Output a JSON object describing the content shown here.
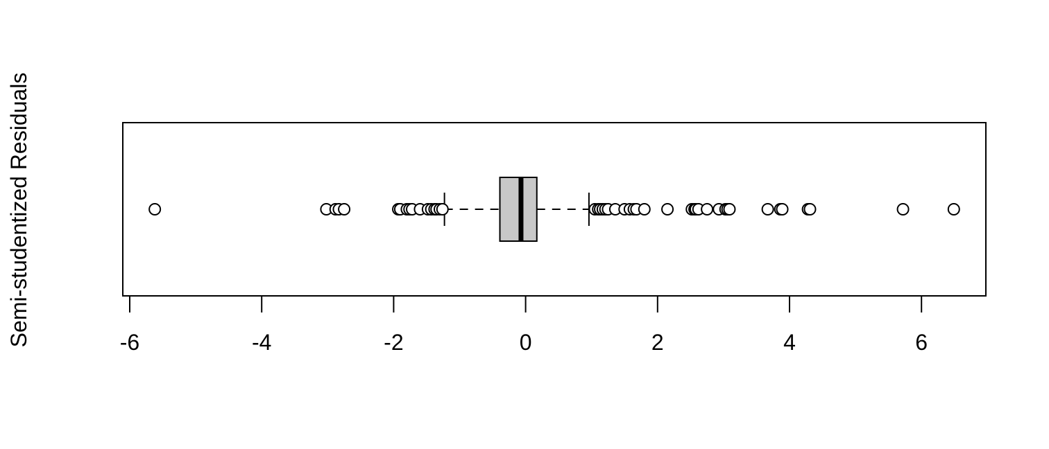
{
  "chart_data": {
    "type": "boxplot",
    "orientation": "horizontal",
    "title": "",
    "xlabel": "",
    "ylabel": "Semi-studentized Residuals",
    "xlim": [
      -6.1,
      7.0
    ],
    "x_ticks": [
      -6,
      -4,
      -2,
      0,
      2,
      4,
      6
    ],
    "x_tick_labels": [
      "-6",
      "-4",
      "-2",
      "0",
      "2",
      "4",
      "6"
    ],
    "grid": false,
    "legend": "none",
    "box": {
      "q1": -0.39,
      "median": -0.07,
      "q3": 0.17,
      "whisker_low": -1.23,
      "whisker_high": 0.96
    },
    "outliers": [
      -5.62,
      -3.02,
      -2.88,
      -2.83,
      -2.75,
      -1.93,
      -1.9,
      -1.8,
      -1.76,
      -1.72,
      -1.6,
      -1.48,
      -1.43,
      -1.38,
      -1.35,
      -1.3,
      -1.26,
      1.05,
      1.1,
      1.13,
      1.17,
      1.21,
      1.25,
      1.36,
      1.5,
      1.58,
      1.64,
      1.68,
      1.8,
      2.15,
      2.52,
      2.56,
      2.58,
      2.62,
      2.75,
      2.93,
      3.03,
      3.06,
      3.09,
      3.67,
      3.86,
      3.89,
      4.28,
      4.31,
      5.72,
      6.49
    ],
    "colors": {
      "box_fill": "#c8c8c8",
      "stroke": "#000000",
      "outlier_fill": "#ffffff"
    }
  }
}
